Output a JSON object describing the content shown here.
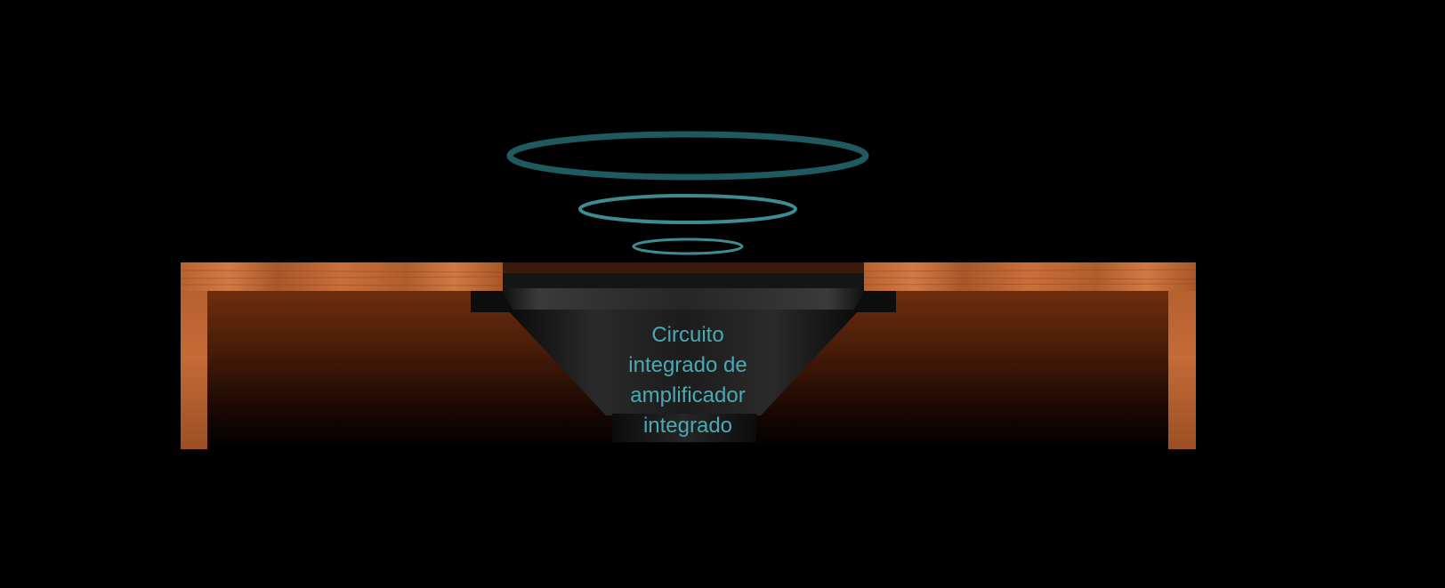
{
  "diagram": {
    "label_lines": [
      "Circuito",
      "integrado de",
      "amplificador",
      "integrado"
    ]
  },
  "colors": {
    "background": "#000000",
    "wave_outer": "#1f5a60",
    "wave_middle": "#3d8c94",
    "wave_inner": "#3d8c94",
    "label_text": "#4aaab4",
    "wood_light": "#c86f3b",
    "wood_dark": "#7a3514",
    "speaker_body": "#1a1a1a",
    "speaker_rim": "#0d0d0d"
  }
}
